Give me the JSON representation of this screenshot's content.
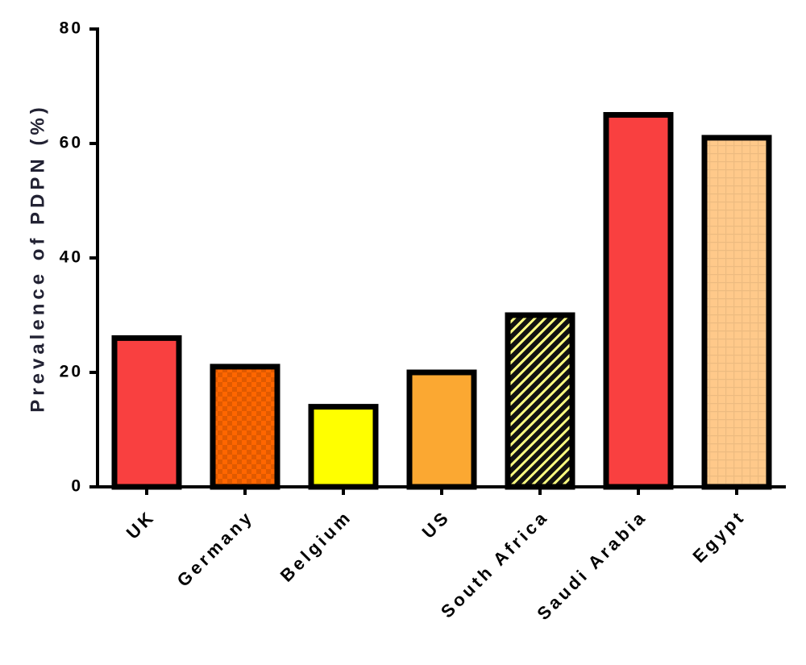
{
  "chart_data": {
    "type": "bar",
    "y_label": "Prevalence of PDPN (%)",
    "categories": [
      "UK",
      "Germany",
      "Belgium",
      "US",
      "South Africa",
      "Saudi Arabia",
      "Egypt"
    ],
    "values": [
      26,
      21,
      14,
      20,
      30,
      65,
      61
    ],
    "colors": [
      "#f94040",
      "#ff6600",
      "#ffff00",
      "#fba832",
      "#ffff80",
      "#f94040",
      "#ffc98a"
    ],
    "patterns": [
      "solid",
      "checker",
      "solid",
      "solid",
      "hatch",
      "solid",
      "grid"
    ],
    "ylim": [
      0,
      80
    ],
    "yticks": [
      0,
      20,
      40,
      60,
      80
    ],
    "grid": false
  }
}
